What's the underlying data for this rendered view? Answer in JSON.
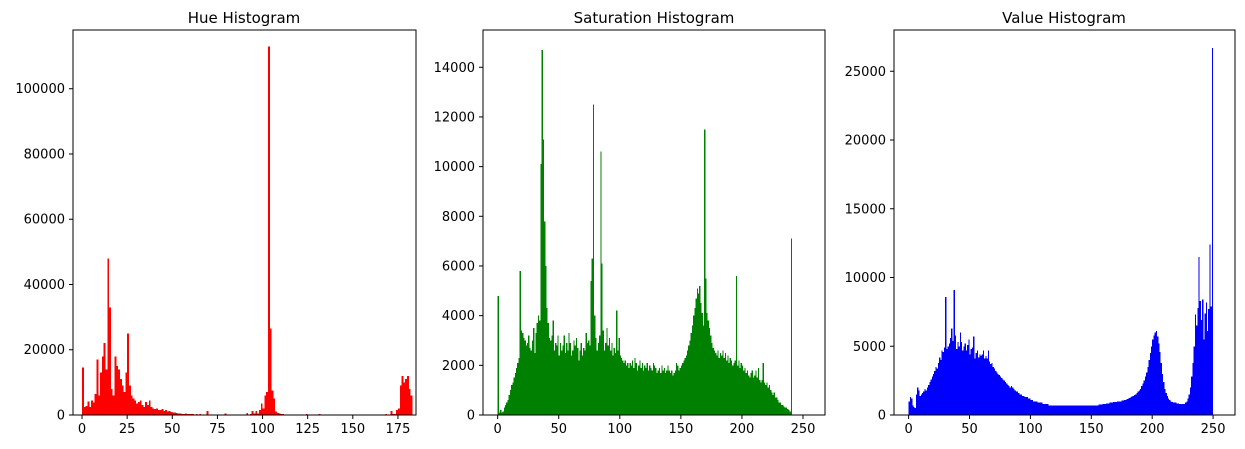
{
  "figure": {
    "background": "#ffffff"
  },
  "chart_data": [
    {
      "type": "bar",
      "title": "Hue Histogram",
      "color": "#ff0000",
      "bin_start": 0,
      "bin_width": 1,
      "xlim": [
        -5,
        185
      ],
      "ylim": [
        0,
        118000
      ],
      "xticks": [
        0,
        25,
        50,
        75,
        100,
        125,
        150,
        175
      ],
      "yticks": [
        0,
        20000,
        40000,
        60000,
        80000,
        100000
      ],
      "values": [
        14500,
        2500,
        2800,
        4200,
        2500,
        4500,
        3800,
        6500,
        17000,
        6000,
        13000,
        18000,
        22000,
        14000,
        48000,
        33000,
        8000,
        6000,
        18000,
        15000,
        14000,
        11000,
        9000,
        7000,
        13000,
        25000,
        9000,
        6000,
        5000,
        4500,
        3500,
        4000,
        4500,
        3000,
        2500,
        4000,
        3000,
        4500,
        2500,
        2000,
        1800,
        2000,
        1500,
        1500,
        1800,
        1200,
        1500,
        1000,
        1200,
        900,
        800,
        700,
        600,
        500,
        400,
        350,
        300,
        400,
        300,
        250,
        300,
        250,
        200,
        250,
        200,
        300,
        150,
        200,
        150,
        1200,
        200,
        150,
        150,
        200,
        150,
        150,
        200,
        150,
        150,
        400,
        150,
        150,
        200,
        150,
        150,
        200,
        150,
        150,
        150,
        200,
        200,
        600,
        200,
        300,
        1200,
        400,
        1200,
        500,
        1600,
        3500,
        2000,
        6000,
        7000,
        113000,
        26500,
        7500,
        5000,
        1000,
        600,
        400,
        300,
        250,
        200,
        150,
        150,
        150,
        200,
        150,
        150,
        150,
        150,
        150,
        150,
        150,
        300,
        150,
        150,
        150,
        150,
        150,
        150,
        300,
        150,
        100,
        100,
        100,
        100,
        100,
        100,
        100,
        100,
        100,
        100,
        100,
        100,
        100,
        100,
        100,
        100,
        100,
        100,
        100,
        100,
        100,
        100,
        100,
        100,
        100,
        100,
        100,
        100,
        100,
        100,
        100,
        100,
        100,
        100,
        100,
        300,
        150,
        200,
        1200,
        300,
        300,
        1500,
        2000,
        9000,
        12000,
        10000,
        11000,
        12000,
        8000,
        6000
      ]
    },
    {
      "type": "bar",
      "title": "Saturation Histogram",
      "color": "#008000",
      "bin_start": 0,
      "bin_width": 1,
      "xlim": [
        -12,
        268
      ],
      "ylim": [
        0,
        15500
      ],
      "xticks": [
        0,
        50,
        100,
        150,
        200,
        250
      ],
      "yticks": [
        0,
        2000,
        4000,
        6000,
        8000,
        10000,
        12000,
        14000
      ],
      "values": [
        4800,
        100,
        200,
        100,
        150,
        300,
        400,
        500,
        600,
        800,
        1000,
        1200,
        1300,
        1500,
        1700,
        1900,
        2100,
        2300,
        5800,
        3400,
        3300,
        3100,
        3000,
        2800,
        2900,
        3200,
        2700,
        2600,
        3000,
        3500,
        2500,
        3300,
        3700,
        4000,
        3800,
        10100,
        14700,
        11100,
        7800,
        6000,
        4300,
        3700,
        3100,
        3000,
        3200,
        3800,
        2600,
        2900,
        2800,
        3200,
        2400,
        2900,
        2600,
        2800,
        3200,
        2500,
        2900,
        2600,
        3300,
        2900,
        2400,
        2600,
        3000,
        2800,
        3100,
        2700,
        2200,
        2600,
        2900,
        2400,
        2700,
        2600,
        3300,
        2900,
        3000,
        2800,
        5400,
        6300,
        12500,
        4000,
        3100,
        2600,
        2900,
        3200,
        10600,
        6100,
        3400,
        2600,
        2900,
        3500,
        2800,
        3100,
        2600,
        2900,
        2400,
        2700,
        2500,
        4200,
        2600,
        3100,
        2400,
        2300,
        2200,
        2100,
        2200,
        2000,
        2100,
        1900,
        2100,
        2000,
        2200,
        1900,
        2300,
        2100,
        1800,
        2000,
        2200,
        1900,
        2100,
        1800,
        2000,
        1900,
        2100,
        1800,
        2000,
        1900,
        1800,
        2100,
        2000,
        1900,
        1700,
        1800,
        1900,
        1700,
        2000,
        1800,
        1900,
        1700,
        1800,
        2000,
        1800,
        1700,
        1800,
        1600,
        1700,
        1800,
        2100,
        2000,
        1800,
        1900,
        2000,
        2100,
        2200,
        2300,
        2400,
        2600,
        2800,
        3000,
        3300,
        3600,
        4000,
        4300,
        4700,
        5100,
        4900,
        5200,
        4500,
        4100,
        3600,
        11500,
        5500,
        4100,
        3800,
        3500,
        3200,
        2900,
        2700,
        2600,
        2500,
        2400,
        2600,
        2300,
        2500,
        2400,
        2600,
        2300,
        2500,
        2200,
        2400,
        2100,
        2300,
        2200,
        2000,
        2100,
        2200,
        5600,
        2000,
        2200,
        1900,
        2100,
        2000,
        1800,
        1900,
        1700,
        1800,
        1600,
        1500,
        1700,
        1800,
        1500,
        1600,
        1800,
        1500,
        1900,
        1400,
        1300,
        1400,
        2100,
        1300,
        1200,
        1300,
        1100,
        1200,
        1000,
        900,
        800,
        900,
        700,
        700,
        600,
        500,
        500,
        400,
        400,
        350,
        300,
        300,
        250,
        200,
        150,
        7100
      ]
    },
    {
      "type": "bar",
      "title": "Value Histogram",
      "color": "#0000ff",
      "bin_start": 0,
      "bin_width": 1,
      "xlim": [
        -12,
        268
      ],
      "ylim": [
        0,
        28000
      ],
      "xticks": [
        0,
        50,
        100,
        150,
        200,
        250
      ],
      "yticks": [
        0,
        5000,
        10000,
        15000,
        20000,
        25000
      ],
      "values": [
        1000,
        1300,
        1200,
        700,
        600,
        500,
        1500,
        2000,
        1800,
        1400,
        1500,
        1600,
        1700,
        1900,
        1800,
        2000,
        2200,
        2400,
        2600,
        2800,
        3000,
        3200,
        3500,
        3400,
        3800,
        4200,
        4000,
        4700,
        4600,
        4900,
        8600,
        4800,
        5000,
        5200,
        5600,
        6300,
        5400,
        9100,
        5800,
        4800,
        5300,
        5000,
        6000,
        5300,
        4700,
        5000,
        5200,
        4700,
        5100,
        5500,
        4400,
        4800,
        4900,
        5700,
        4100,
        4500,
        4700,
        4200,
        4400,
        4300,
        4400,
        4700,
        4100,
        4300,
        4100,
        4700,
        3900,
        3700,
        3800,
        3500,
        3400,
        3200,
        3100,
        3000,
        2900,
        2800,
        2700,
        2600,
        2500,
        2400,
        2300,
        2200,
        2100,
        2000,
        2100,
        2000,
        1900,
        1800,
        1700,
        1700,
        1600,
        1500,
        1500,
        1400,
        1400,
        1300,
        1300,
        1300,
        1200,
        1200,
        1100,
        1100,
        1000,
        1000,
        1000,
        1000,
        900,
        900,
        900,
        900,
        800,
        800,
        800,
        800,
        800,
        700,
        700,
        700,
        700,
        700,
        700,
        700,
        700,
        700,
        700,
        700,
        700,
        700,
        700,
        700,
        700,
        700,
        700,
        700,
        700,
        700,
        700,
        700,
        700,
        700,
        700,
        700,
        700,
        700,
        700,
        700,
        700,
        700,
        700,
        700,
        700,
        700,
        700,
        700,
        700,
        700,
        750,
        750,
        750,
        800,
        800,
        800,
        850,
        850,
        850,
        900,
        900,
        900,
        950,
        950,
        950,
        1000,
        1000,
        1000,
        1000,
        1050,
        1050,
        1100,
        1100,
        1150,
        1200,
        1250,
        1300,
        1350,
        1400,
        1450,
        1500,
        1600,
        1700,
        1800,
        1900,
        2100,
        2300,
        2500,
        2800,
        3100,
        3500,
        4000,
        4500,
        5000,
        5500,
        5800,
        6000,
        6100,
        5700,
        5200,
        4600,
        3800,
        3000,
        2400,
        1900,
        1600,
        1400,
        1200,
        1100,
        1000,
        950,
        900,
        900,
        900,
        850,
        850,
        800,
        800,
        800,
        800,
        800,
        900,
        1000,
        1200,
        1500,
        2000,
        2800,
        3800,
        5000,
        7300,
        6500,
        7800,
        11500,
        8300,
        6900,
        8400,
        5500,
        7400,
        8200,
        6100,
        7700,
        12400,
        7900,
        26700
      ]
    }
  ]
}
